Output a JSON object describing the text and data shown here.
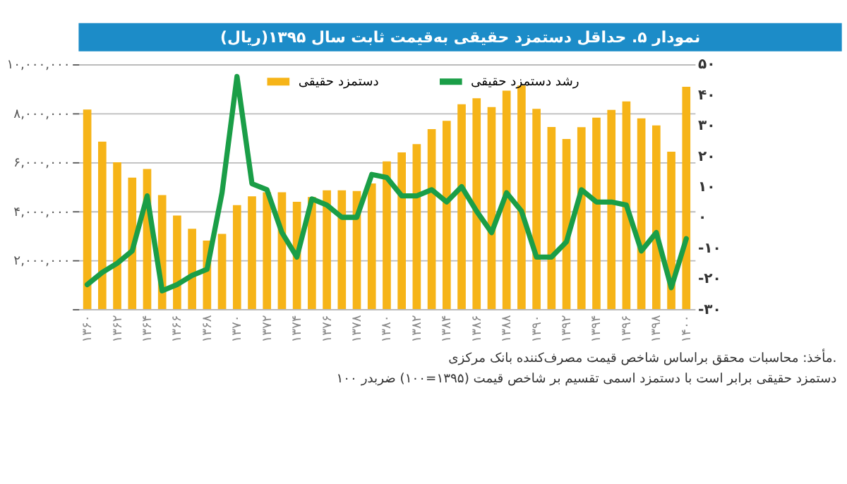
{
  "chart_data": {
    "type": "bar",
    "title": "نمودار ۵. حداقل دستمزد حقیقی به‌قیمت ثابت سال ۱۳۹۵(ریال)",
    "categories": [
      "۱۳۶۰",
      null,
      "۱۳۶۲",
      null,
      "۱۳۶۴",
      null,
      "۱۳۶۶",
      null,
      "۱۳۶۸",
      null,
      "۱۳۷۰",
      null,
      "۱۳۷۲",
      null,
      "۱۳۷۴",
      null,
      "۱۳۷۶",
      null,
      "۱۳۷۸",
      null,
      "۱۳۸۰",
      null,
      "۱۳۸۲",
      null,
      "۱۳۸۴",
      null,
      "۱۳۸۶",
      null,
      "۱۳۸۸",
      null,
      "۱۳۹۰",
      null,
      "۱۳۹۲",
      null,
      "۱۳۹۴",
      null,
      "۱۳۹۶",
      null,
      "۱۳۹۸",
      null,
      "۱۴۰۰"
    ],
    "series": [
      {
        "name": "دستمزد حقیقی",
        "color": "#f6b418",
        "values": [
          8150000,
          6840000,
          6000000,
          5370000,
          5720000,
          4660000,
          3820000,
          3280000,
          2800000,
          3070000,
          4250000,
          4610000,
          4770000,
          4770000,
          4380000,
          4580000,
          4850000,
          4850000,
          4820000,
          5130000,
          6030000,
          6400000,
          6740000,
          7350000,
          7690000,
          8370000,
          8610000,
          8250000,
          8920000,
          9130000,
          8180000,
          7440000,
          6950000,
          7430000,
          7820000,
          8140000,
          8480000,
          7790000,
          7500000,
          6430000,
          9080000
        ]
      },
      {
        "name": "رشد دستمزد حقیقی",
        "type": "line",
        "axis": "y2",
        "color": "#1a9e47",
        "values": [
          -22,
          -18,
          -15,
          -11,
          7,
          -24,
          -22,
          -19,
          -17,
          8,
          46,
          11,
          9,
          -5,
          -13,
          6,
          4,
          0,
          0,
          14,
          13,
          7,
          7,
          9,
          5,
          10,
          2,
          -5,
          8,
          2,
          -13,
          -13,
          -8,
          9,
          5,
          5,
          4,
          -11,
          -5,
          -23,
          -7
        ]
      }
    ],
    "ylim": [
      0,
      10000000
    ],
    "yticks": [
      {
        "value": 0,
        "label": null
      },
      {
        "value": 2000000,
        "label": "۲,۰۰۰,۰۰۰"
      },
      {
        "value": 4000000,
        "label": "۴,۰۰۰,۰۰۰"
      },
      {
        "value": 6000000,
        "label": "۶,۰۰۰,۰۰۰"
      },
      {
        "value": 8000000,
        "label": "۸,۰۰۰,۰۰۰"
      },
      {
        "value": 10000000,
        "label": "۱۰,۰۰۰,۰۰۰"
      }
    ],
    "y2lim": [
      -30,
      50
    ],
    "y2ticks": [
      {
        "value": -30,
        "label": "-۳۰"
      },
      {
        "value": -20,
        "label": "-۲۰"
      },
      {
        "value": -10,
        "label": "-۱۰"
      },
      {
        "value": 0,
        "label": "۰"
      },
      {
        "value": 10,
        "label": "۱۰"
      },
      {
        "value": 20,
        "label": "۲۰"
      },
      {
        "value": 30,
        "label": "۳۰"
      },
      {
        "value": 40,
        "label": "۴۰"
      },
      {
        "value": 50,
        "label": "۵۰"
      }
    ],
    "grid": "y",
    "legend": "top",
    "annotations": [
      "مأخذ: محاسبات محقق براساس شاخص قیمت مصرف‌کننده بانک مرکزی.",
      "دستمزد حقیقی برابر است با دستمزد اسمی تقسیم بر شاخص قیمت (۱۳۹۵=۱۰۰) ضربدر ۱۰۰"
    ]
  }
}
